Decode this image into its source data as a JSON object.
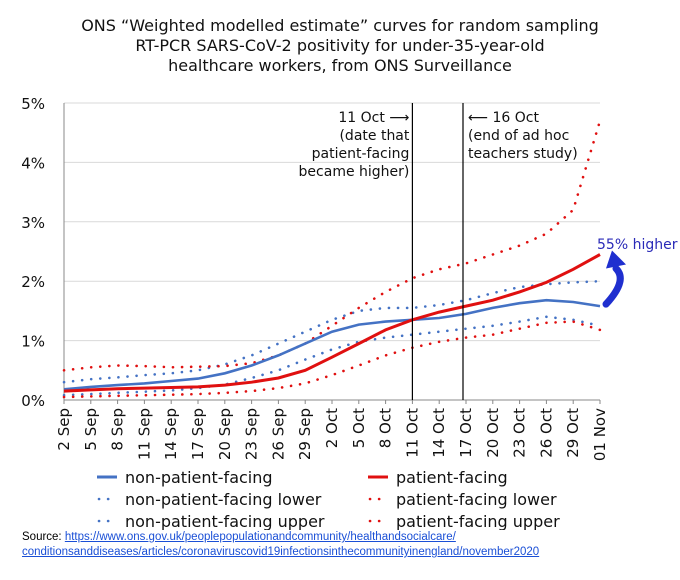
{
  "chart_data": {
    "type": "line",
    "title": [
      "ONS “Weighted modelled estimate” curves for random sampling",
      "RT-PCR SARS-CoV-2 positivity for under-35-year-old",
      "healthcare workers, from ONS Surveillance"
    ],
    "x": [
      "2 Sep",
      "5 Sep",
      "8 Sep",
      "11 Sep",
      "14 Sep",
      "17 Sep",
      "20 Sep",
      "23 Sep",
      "26 Sep",
      "29 Sep",
      "2 Oct",
      "5 Oct",
      "8 Oct",
      "11 Oct",
      "14 Oct",
      "17 Oct",
      "20 Oct",
      "23 Oct",
      "26 Oct",
      "29 Oct",
      "01 Nov"
    ],
    "ylim": [
      0,
      5
    ],
    "yticks": [
      "0%",
      "1%",
      "2%",
      "3%",
      "4%",
      "5%"
    ],
    "series": [
      {
        "name": "non-patient-facing",
        "style": "solid",
        "color": "#4472c4",
        "values": [
          0.18,
          0.22,
          0.25,
          0.28,
          0.32,
          0.36,
          0.45,
          0.58,
          0.75,
          0.95,
          1.15,
          1.27,
          1.32,
          1.35,
          1.38,
          1.45,
          1.55,
          1.63,
          1.68,
          1.65,
          1.58
        ]
      },
      {
        "name": "patient-facing",
        "style": "solid",
        "color": "#e01010",
        "values": [
          0.15,
          0.17,
          0.19,
          0.2,
          0.21,
          0.22,
          0.25,
          0.3,
          0.37,
          0.5,
          0.72,
          0.95,
          1.18,
          1.35,
          1.48,
          1.58,
          1.68,
          1.82,
          1.98,
          2.2,
          2.45
        ]
      },
      {
        "name": "non-patient-facing lower",
        "style": "dotted",
        "color": "#4472c4",
        "values": [
          0.08,
          0.1,
          0.12,
          0.14,
          0.16,
          0.2,
          0.26,
          0.37,
          0.5,
          0.68,
          0.85,
          0.98,
          1.05,
          1.1,
          1.15,
          1.2,
          1.25,
          1.32,
          1.4,
          1.35,
          1.25
        ]
      },
      {
        "name": "patient-facing lower",
        "style": "dotted",
        "color": "#e01010",
        "values": [
          0.05,
          0.06,
          0.07,
          0.08,
          0.09,
          0.1,
          0.12,
          0.15,
          0.2,
          0.28,
          0.42,
          0.58,
          0.75,
          0.88,
          0.98,
          1.05,
          1.1,
          1.2,
          1.3,
          1.32,
          1.18
        ]
      },
      {
        "name": "non-patient-facing upper",
        "style": "dotted",
        "color": "#4472c4",
        "values": [
          0.3,
          0.35,
          0.38,
          0.42,
          0.45,
          0.5,
          0.6,
          0.75,
          0.95,
          1.15,
          1.35,
          1.5,
          1.55,
          1.55,
          1.6,
          1.68,
          1.8,
          1.9,
          1.95,
          1.98,
          2.0
        ]
      },
      {
        "name": "patient-facing upper",
        "style": "dotted",
        "color": "#e01010",
        "values": [
          0.5,
          0.55,
          0.58,
          0.57,
          0.55,
          0.56,
          0.57,
          0.62,
          0.75,
          0.95,
          1.25,
          1.55,
          1.82,
          2.05,
          2.2,
          2.3,
          2.45,
          2.6,
          2.8,
          3.2,
          4.7
        ]
      }
    ],
    "annotations": {
      "oct11": {
        "x": "11 Oct",
        "lines": [
          "11 Oct ⟶",
          "(date that",
          "patient-facing",
          "became higher)"
        ]
      },
      "oct16": {
        "x": "17 Oct",
        "lines": [
          "⟵ 16 Oct",
          "(end of ad hoc",
          "teachers study)"
        ]
      },
      "higher": "55% higher"
    },
    "legend": [
      {
        "name": "non-patient-facing",
        "style": "solid",
        "color": "#4472c4"
      },
      {
        "name": "patient-facing",
        "style": "solid",
        "color": "#e01010"
      },
      {
        "name": "non-patient-facing lower",
        "style": "dotted",
        "color": "#4472c4"
      },
      {
        "name": "patient-facing lower",
        "style": "dotted",
        "color": "#e01010"
      },
      {
        "name": "non-patient-facing upper",
        "style": "dotted",
        "color": "#4472c4"
      },
      {
        "name": "patient-facing upper",
        "style": "dotted",
        "color": "#e01010"
      }
    ]
  },
  "source": {
    "label": "Source: ",
    "url_line1": "https://www.ons.gov.uk/peoplepopulationandcommunity/healthandsocialcare/",
    "url_line2": "conditionsanddiseases/articles/coronaviruscovid19infectionsinthecommunityinengland/november2020"
  }
}
